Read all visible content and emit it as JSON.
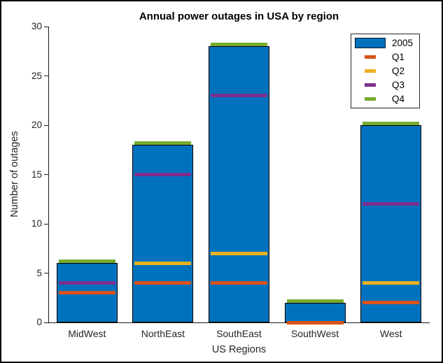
{
  "chart_data": {
    "type": "bar",
    "title": "Annual power outages in USA by region",
    "xlabel": "US Regions",
    "ylabel": "Number of outages",
    "categories": [
      "MidWest",
      "NorthEast",
      "SouthEast",
      "SouthWest",
      "West"
    ],
    "ylim": [
      0,
      30
    ],
    "yticks": [
      0,
      5,
      10,
      15,
      20,
      25,
      30
    ],
    "grid": false,
    "legend_position": "top-right",
    "series": [
      {
        "name": "2005",
        "type": "bar",
        "color": "#0072BD",
        "values": [
          6,
          18,
          28,
          2,
          20
        ]
      },
      {
        "name": "Q1",
        "type": "mark",
        "color": "#D95319",
        "values": [
          3,
          4,
          4,
          0,
          2
        ]
      },
      {
        "name": "Q2",
        "type": "mark",
        "color": "#EDB120",
        "values": [
          null,
          6,
          7,
          null,
          4
        ]
      },
      {
        "name": "Q3",
        "type": "mark",
        "color": "#7E2F8E",
        "values": [
          4,
          15,
          23,
          null,
          12
        ]
      },
      {
        "name": "Q4",
        "type": "mark-top",
        "color": "#77AC30",
        "values": [
          6,
          18,
          28,
          2,
          20
        ]
      }
    ],
    "legend": [
      {
        "label": "2005",
        "color": "#0072BD",
        "swatch": "box"
      },
      {
        "label": "Q1",
        "color": "#D95319",
        "swatch": "line"
      },
      {
        "label": "Q2",
        "color": "#EDB120",
        "swatch": "line"
      },
      {
        "label": "Q3",
        "color": "#7E2F8E",
        "swatch": "line"
      },
      {
        "label": "Q4",
        "color": "#77AC30",
        "swatch": "line"
      }
    ]
  }
}
